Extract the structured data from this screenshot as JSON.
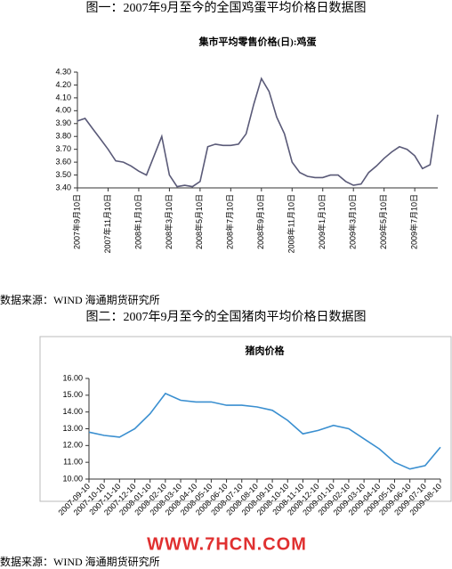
{
  "captions": [
    "图一：2007年9月至今的全国鸡蛋平均价格日数据图",
    "图二：2007年9月至今的全国猪肉平均价格日数据图"
  ],
  "sources": [
    "数据来源：WIND  海通期货研究所",
    "数据来源：WIND  海通期货研究所"
  ],
  "watermark": "WWW.7HCN.COM",
  "chart_data": [
    {
      "type": "line",
      "title": "集市平均零售价格(日):鸡蛋",
      "color": "#5a5a78",
      "categories": [
        "2007年9月10日",
        null,
        null,
        null,
        "2007年11月10日",
        null,
        null,
        null,
        "2008年1月10日",
        null,
        null,
        null,
        "2008年3月10日",
        null,
        null,
        null,
        "2008年5月10日",
        null,
        null,
        null,
        "2008年7月10日",
        null,
        null,
        null,
        "2008年9月10日",
        null,
        null,
        null,
        "2008年11月10日",
        null,
        null,
        null,
        "2009年1月10日",
        null,
        null,
        null,
        "2009年3月10日",
        null,
        null,
        null,
        "2009年5月10日",
        null,
        null,
        null,
        "2009年7月10日",
        null,
        null,
        null
      ],
      "values": [
        3.92,
        3.94,
        3.86,
        3.78,
        3.7,
        3.61,
        3.6,
        3.57,
        3.53,
        3.5,
        3.65,
        3.8,
        3.5,
        3.41,
        3.42,
        3.41,
        3.45,
        3.72,
        3.74,
        3.73,
        3.73,
        3.74,
        3.82,
        4.05,
        4.25,
        4.15,
        3.95,
        3.82,
        3.6,
        3.52,
        3.49,
        3.48,
        3.48,
        3.5,
        3.5,
        3.45,
        3.42,
        3.43,
        3.52,
        3.57,
        3.63,
        3.68,
        3.72,
        3.7,
        3.65,
        3.55,
        3.58,
        3.97
      ],
      "ylim": [
        3.4,
        4.3
      ],
      "yticks": [
        {
          "value": 3.4,
          "label": "3.40"
        },
        {
          "value": 3.5,
          "label": "3.50"
        },
        {
          "value": 3.6,
          "label": "3.60"
        },
        {
          "value": 3.7,
          "label": "3.70"
        },
        {
          "value": 3.8,
          "label": "3.80"
        },
        {
          "value": 3.9,
          "label": "3.90"
        },
        {
          "value": 4.0,
          "label": "4.00"
        },
        {
          "value": 4.1,
          "label": "4.10"
        },
        {
          "value": 4.2,
          "label": "4.20"
        },
        {
          "value": 4.3,
          "label": "4.30"
        }
      ],
      "grid": false
    },
    {
      "type": "line",
      "title": "猪肉价格",
      "color": "#3a8fd0",
      "categories": [
        "2007-09-10",
        "2007-10-10",
        "2007-11-10",
        "2007-12-10",
        "2008-01-10",
        "2008-02-10",
        "2008-03-10",
        "2008-04-10",
        "2008-05-10",
        "2008-06-10",
        "2008-07-10",
        "2008-08-10",
        "2008-09-10",
        "2008-10-10",
        "2008-11-10",
        "2008-12-10",
        "2009-01-10",
        "2009-02-10",
        "2009-03-10",
        "2009-04-10",
        "2009-05-10",
        "2009-06-10",
        "2009-07-10",
        "2009-08-10"
      ],
      "values": [
        12.8,
        12.6,
        12.5,
        13.0,
        13.9,
        15.1,
        14.7,
        14.6,
        14.6,
        14.4,
        14.4,
        14.3,
        14.1,
        13.5,
        12.7,
        12.9,
        13.2,
        13.0,
        12.4,
        11.8,
        11.0,
        10.6,
        10.8,
        11.9
      ],
      "ylim": [
        10,
        16
      ],
      "yticks": [
        {
          "value": 10,
          "label": "10.00"
        },
        {
          "value": 11,
          "label": "11.00"
        },
        {
          "value": 12,
          "label": "12.00"
        },
        {
          "value": 13,
          "label": "13.00"
        },
        {
          "value": 14,
          "label": "14.00"
        },
        {
          "value": 15,
          "label": "15.00"
        },
        {
          "value": 16,
          "label": "16.00"
        }
      ],
      "grid": false
    }
  ]
}
